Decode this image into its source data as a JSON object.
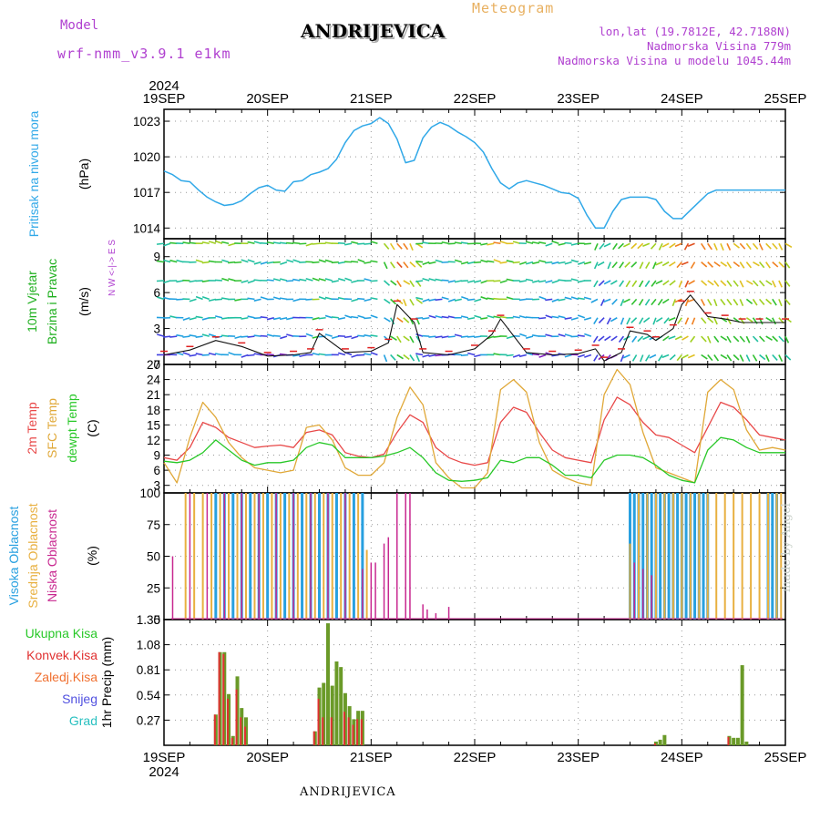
{
  "header": {
    "model_label": "Model",
    "model_name": "wrf-nmm_v3.9.1 e1km",
    "title": "ANDRIJEVICA",
    "meteogram": "Meteogram",
    "lonlat": "lon,lat (19.7812E, 42.7188N)",
    "elevation": "Nadmorska Visina 779m",
    "model_elevation": "Nadmorska Visina u modelu 1045.44m"
  },
  "footer": {
    "station": "ANDRIJEVICA",
    "credit": "made by Angel"
  },
  "colors": {
    "pressure": "#30a8e8",
    "temp2m": "#e84848",
    "sfc": "#e0a838",
    "dewpt": "#28c828",
    "cloud_high": "#28a0e0",
    "cloud_mid": "#e8b040",
    "cloud_low": "#c82890",
    "precip": "#6a9a28",
    "conv": "#e03030",
    "frozen": "#f07030",
    "snow": "#5050e0",
    "grad": "#28c0c0",
    "model": "#b040d0"
  },
  "chart_data": [
    {
      "type": "line",
      "panel": "pressure",
      "ylabel_left": "Pritisak na nivou mora",
      "unit": "(hPa)",
      "x_start": "2024-09-19 00:00",
      "x_end": "2024-09-25 00:00",
      "year_label": "2024",
      "day_labels": [
        "19SEP",
        "20SEP",
        "21SEP",
        "22SEP",
        "23SEP",
        "24SEP",
        "25SEP"
      ],
      "yticks": [
        1014,
        1017,
        1020,
        1023
      ],
      "ylim": [
        1013.1,
        1024.0
      ],
      "x_hours": [
        0,
        2,
        4,
        6,
        8,
        10,
        12,
        14,
        16,
        18,
        20,
        22,
        24,
        26,
        28,
        30,
        32,
        34,
        36,
        38,
        40,
        42,
        44,
        46,
        48,
        50,
        52,
        54,
        56,
        58,
        60,
        62,
        64,
        66,
        68,
        70,
        72,
        74,
        76,
        78,
        80,
        82,
        84,
        86,
        88,
        90,
        92,
        94,
        96,
        98,
        100,
        102,
        104,
        106,
        108,
        110,
        112,
        114,
        116,
        118,
        120,
        122,
        124,
        126,
        128,
        130,
        132,
        134,
        136,
        138,
        140,
        142,
        144
      ],
      "values": [
        1018.8,
        1018.5,
        1018.0,
        1017.9,
        1017.2,
        1016.6,
        1016.2,
        1015.9,
        1016.0,
        1016.3,
        1016.9,
        1017.4,
        1017.6,
        1017.2,
        1017.1,
        1017.9,
        1018.0,
        1018.5,
        1018.7,
        1019.0,
        1019.8,
        1021.2,
        1022.2,
        1022.6,
        1022.8,
        1023.3,
        1022.8,
        1021.5,
        1019.5,
        1019.7,
        1021.6,
        1022.5,
        1022.9,
        1022.6,
        1022.1,
        1021.7,
        1021.2,
        1020.4,
        1019.0,
        1017.8,
        1017.3,
        1017.8,
        1018.0,
        1017.8,
        1017.6,
        1017.3,
        1017.0,
        1016.9,
        1016.5,
        1015.1,
        1014.0,
        1014.0,
        1015.4,
        1016.4,
        1016.6,
        1016.6,
        1016.6,
        1016.4,
        1015.4,
        1014.8,
        1014.8,
        1015.5,
        1016.2,
        1016.9,
        1017.2,
        1017.2,
        1017.2,
        1017.2,
        1017.2,
        1017.2,
        1017.2,
        1017.2,
        1017.2
      ]
    },
    {
      "type": "line",
      "panel": "wind",
      "ylabel_left": "10m Vjetar",
      "ylabel_left2": "Brzina i Pravac",
      "unit": "(m/s)",
      "compass": "N W <-|-> E S",
      "yticks": [
        0,
        3,
        6,
        9
      ],
      "ylim": [
        0,
        10.5
      ],
      "x_hours": [
        0,
        6,
        12,
        18,
        24,
        30,
        34,
        36,
        42,
        48,
        52,
        54,
        58,
        60,
        66,
        72,
        76,
        78,
        84,
        90,
        96,
        100,
        102,
        106,
        108,
        112,
        114,
        118,
        120,
        122,
        126,
        130,
        134,
        138,
        144
      ],
      "values": [
        0.8,
        1.2,
        2.0,
        1.5,
        0.7,
        0.8,
        1.0,
        2.6,
        1.0,
        1.1,
        1.8,
        5.0,
        3.5,
        1.0,
        0.8,
        1.3,
        2.5,
        3.8,
        1.0,
        0.8,
        0.9,
        1.3,
        0.3,
        1.0,
        2.8,
        2.5,
        2.0,
        3.0,
        5.0,
        5.8,
        4.0,
        3.8,
        3.5,
        3.5,
        3.5
      ]
    },
    {
      "type": "line",
      "panel": "temperature",
      "ylabel_left": "2m Temp",
      "ylabel_left2": "SFC Temp",
      "ylabel_left3": "dewpt Temp",
      "unit": "(C)",
      "yticks": [
        3,
        6,
        9,
        12,
        15,
        18,
        21,
        24,
        27
      ],
      "ylim": [
        1.5,
        27
      ],
      "x_hours": [
        0,
        3,
        6,
        9,
        12,
        15,
        18,
        21,
        24,
        27,
        30,
        33,
        36,
        39,
        42,
        45,
        48,
        51,
        54,
        57,
        60,
        63,
        66,
        69,
        72,
        75,
        78,
        81,
        84,
        87,
        90,
        93,
        96,
        99,
        102,
        105,
        108,
        111,
        114,
        117,
        120,
        123,
        126,
        129,
        132,
        135,
        138,
        141,
        144
      ],
      "series": [
        {
          "name": "2m Temp",
          "values": [
            8.5,
            8.0,
            10.5,
            15.5,
            14.5,
            12.5,
            11.5,
            10.5,
            10.8,
            11.0,
            10.5,
            13.5,
            14.0,
            13.0,
            9.5,
            8.8,
            8.5,
            9.2,
            13.5,
            17.0,
            15.5,
            10.5,
            8.5,
            7.5,
            7.0,
            7.5,
            15.5,
            18.5,
            17.5,
            13.5,
            10.0,
            8.5,
            8.0,
            7.5,
            16.0,
            20.5,
            19.0,
            15.5,
            13.0,
            12.5,
            11.0,
            9.5,
            14.5,
            19.5,
            18.5,
            16.0,
            13.0,
            12.5,
            12.0
          ]
        },
        {
          "name": "SFC Temp",
          "values": [
            7.5,
            3.5,
            12.5,
            19.5,
            16.5,
            11.5,
            8.5,
            6.5,
            6.0,
            5.5,
            6.0,
            14.5,
            15.0,
            12.0,
            6.5,
            5.0,
            5.0,
            7.5,
            16.5,
            22.5,
            19.0,
            7.5,
            4.5,
            2.5,
            2.5,
            5.5,
            22.0,
            24.0,
            21.5,
            11.5,
            6.0,
            4.5,
            3.5,
            3.0,
            21.0,
            26.0,
            23.0,
            13.5,
            6.5,
            5.5,
            4.5,
            3.5,
            21.5,
            24.0,
            22.0,
            14.0,
            10.0,
            10.5,
            10.0
          ]
        },
        {
          "name": "dewpt Temp",
          "values": [
            7.8,
            7.5,
            8.0,
            9.5,
            12.0,
            10.0,
            8.0,
            7.0,
            7.5,
            7.5,
            8.0,
            10.5,
            11.5,
            11.0,
            8.5,
            8.5,
            8.5,
            8.8,
            9.5,
            10.5,
            8.5,
            5.5,
            4.0,
            3.8,
            4.0,
            4.5,
            8.0,
            7.5,
            8.5,
            8.5,
            7.0,
            5.0,
            5.0,
            4.5,
            8.0,
            9.0,
            9.0,
            8.5,
            7.0,
            5.0,
            4.0,
            3.5,
            10.0,
            12.5,
            12.0,
            10.5,
            9.5,
            9.5,
            9.5
          ]
        }
      ]
    },
    {
      "type": "bar",
      "panel": "cloud",
      "ylabel_left": "Visoka Oblacnost",
      "ylabel_left2": "Srednja Oblacnost",
      "ylabel_left3": "Niska Oblacnost",
      "unit": "(%)",
      "yticks": [
        0,
        25,
        50,
        75,
        100
      ],
      "ylim": [
        0,
        100
      ],
      "series": [
        {
          "name": "Visoka Oblacnost",
          "x_hours": [
            12,
            14,
            16,
            18,
            20,
            22,
            24,
            26,
            28,
            30,
            32,
            34,
            36,
            38,
            40,
            42,
            44,
            46,
            108,
            109,
            110,
            111,
            112,
            113,
            114,
            115,
            116,
            117,
            118,
            119,
            120,
            121,
            122,
            123,
            124,
            125,
            126,
            140,
            141,
            142
          ],
          "values": [
            100,
            100,
            100,
            100,
            100,
            100,
            100,
            100,
            100,
            100,
            100,
            100,
            100,
            100,
            100,
            100,
            100,
            100,
            100,
            100,
            100,
            100,
            100,
            100,
            100,
            100,
            100,
            100,
            100,
            100,
            100,
            100,
            100,
            100,
            100,
            100,
            100,
            100,
            100,
            100
          ]
        },
        {
          "name": "Srednja Oblacnost",
          "x_hours": [
            5,
            7,
            9,
            11,
            13,
            15,
            17,
            19,
            21,
            23,
            25,
            27,
            29,
            31,
            33,
            35,
            37,
            39,
            41,
            43,
            45,
            47,
            108,
            110,
            112,
            114,
            116,
            118,
            120,
            122,
            124,
            126,
            128,
            130,
            132,
            134,
            136,
            138,
            140,
            142,
            143
          ],
          "values": [
            100,
            100,
            100,
            100,
            100,
            100,
            100,
            100,
            100,
            100,
            100,
            100,
            100,
            100,
            100,
            100,
            100,
            100,
            100,
            100,
            100,
            55,
            60,
            100,
            100,
            100,
            100,
            100,
            100,
            100,
            100,
            100,
            100,
            100,
            100,
            100,
            100,
            100,
            100,
            100,
            100
          ]
        },
        {
          "name": "Niska Oblacnost",
          "x_hours": [
            2,
            6,
            10,
            14,
            18,
            22,
            26,
            30,
            34,
            38,
            42,
            46,
            48,
            49,
            51,
            52,
            54,
            56,
            57,
            60,
            61,
            63,
            66,
            109,
            111,
            113
          ],
          "values": [
            50,
            100,
            100,
            100,
            100,
            100,
            100,
            100,
            100,
            100,
            100,
            40,
            45,
            45,
            60,
            65,
            100,
            100,
            100,
            12,
            8,
            5,
            10,
            45,
            40,
            35
          ]
        }
      ]
    },
    {
      "type": "bar",
      "panel": "precip",
      "ylabel_left": "1hr Precip",
      "unit": "(mm)",
      "legend": [
        "Ukupna Kisa",
        "Konvek.Kisa",
        "Zaledj.Kisa",
        "Snijeg",
        "Grad"
      ],
      "yticks": [
        0.27,
        0.54,
        0.81,
        1.08,
        1.35
      ],
      "ylim": [
        0,
        1.35
      ],
      "x_hours": [
        12,
        13,
        14,
        15,
        16,
        17,
        18,
        19,
        20,
        35,
        36,
        37,
        38,
        39,
        40,
        41,
        42,
        43,
        44,
        45,
        46,
        47,
        48,
        114,
        115,
        116,
        131,
        132,
        133,
        134,
        135
      ],
      "values": [
        0.33,
        1.0,
        1.0,
        0.55,
        0.1,
        0.74,
        0.4,
        0.3,
        0.0,
        0.15,
        0.62,
        0.67,
        1.31,
        0.64,
        0.9,
        0.84,
        0.56,
        0.42,
        0.28,
        0.37,
        0.37,
        0.0,
        0.0,
        0.04,
        0.06,
        0.11,
        0.1,
        0.08,
        0.08,
        0.86,
        0.04
      ],
      "conv_values": [
        0.33,
        1.0,
        0.98,
        0.5,
        0.08,
        0.6,
        0.3,
        0.2,
        0.0,
        0.15,
        0.5,
        0.3,
        0.0,
        0.3,
        0.0,
        0.0,
        0.36,
        0.3,
        0.22,
        0.28,
        0.28,
        0.0,
        0.0,
        0.02,
        0.0,
        0.0,
        0.09,
        0.0,
        0.0,
        0.0,
        0.0
      ]
    }
  ]
}
